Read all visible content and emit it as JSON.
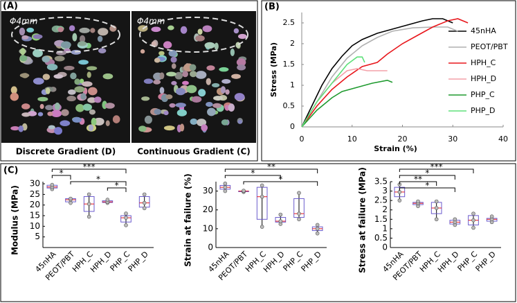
{
  "panel_a": {
    "label": "(A)",
    "scale_label": "Φ4mm",
    "captions": [
      "Discrete Gradient (D)",
      "Continuous Gradient (C)"
    ]
  },
  "chart_data": [
    {
      "type": "line",
      "panel_label": "(B)",
      "xlabel": "Strain (%)",
      "ylabel": "Stress (MPa)",
      "xlim": [
        0,
        40
      ],
      "xticks": [
        0,
        10,
        20,
        30,
        40
      ],
      "ylim": [
        0,
        2.75
      ],
      "yticks": [
        0,
        0.5,
        1,
        1.5,
        2,
        2.5
      ],
      "legend": "right",
      "series": [
        {
          "name": "45nHA",
          "color": "#000000",
          "x": [
            0,
            2,
            4,
            6,
            8,
            10,
            12,
            15,
            18,
            21,
            24,
            26,
            28,
            30
          ],
          "values": [
            0,
            0.5,
            1.0,
            1.4,
            1.7,
            1.95,
            2.1,
            2.25,
            2.35,
            2.45,
            2.55,
            2.6,
            2.6,
            2.5
          ]
        },
        {
          "name": "PEOT/PBT",
          "color": "#b0b0b0",
          "x": [
            0,
            3,
            6,
            9,
            12,
            15,
            18,
            22,
            26,
            29,
            31
          ],
          "values": [
            0,
            0.6,
            1.2,
            1.65,
            1.95,
            2.15,
            2.3,
            2.38,
            2.4,
            2.4,
            2.3
          ]
        },
        {
          "name": "HPH_C",
          "color": "#e8161b",
          "x": [
            0,
            3,
            6,
            9,
            12,
            15,
            17,
            20,
            23,
            26,
            29,
            31,
            33
          ],
          "values": [
            0,
            0.5,
            0.9,
            1.2,
            1.45,
            1.55,
            1.75,
            2.0,
            2.2,
            2.4,
            2.55,
            2.6,
            2.5
          ]
        },
        {
          "name": "HPH_D",
          "color": "#f4a0a8",
          "x": [
            0,
            3,
            6,
            9,
            11,
            13,
            17
          ],
          "values": [
            0,
            0.6,
            1.05,
            1.35,
            1.4,
            1.35,
            1.35
          ]
        },
        {
          "name": "PHP_C",
          "color": "#1e9a2e",
          "x": [
            0,
            3,
            6,
            8,
            11,
            14,
            17,
            18
          ],
          "values": [
            0,
            0.4,
            0.7,
            0.85,
            0.95,
            1.05,
            1.12,
            1.07
          ]
        },
        {
          "name": "PHP_D",
          "color": "#5ee07a",
          "x": [
            0,
            3,
            6,
            9,
            11,
            12,
            12.5
          ],
          "values": [
            0,
            0.6,
            1.05,
            1.5,
            1.68,
            1.68,
            1.55
          ]
        }
      ]
    },
    {
      "type": "box",
      "panel_label": "(C)",
      "ylabel": "Modulus (MPa)",
      "ylim": [
        0,
        31
      ],
      "yticks": [
        5,
        10,
        15,
        20,
        25,
        30
      ],
      "categories": [
        "45nHA",
        "PEOT/PBT",
        "HPH_C",
        "HPH_D",
        "PHP_C",
        "PHP_D"
      ],
      "boxes": [
        {
          "min": 27.5,
          "q1": 28,
          "median": 28.5,
          "q3": 29.3,
          "max": 29.5
        },
        {
          "min": 21,
          "q1": 21.5,
          "median": 22.5,
          "q3": 23,
          "max": 23
        },
        {
          "min": 14.5,
          "q1": 17,
          "median": 20.5,
          "q3": 24,
          "max": 25
        },
        {
          "min": 21,
          "q1": 21.2,
          "median": 21.5,
          "q3": 22,
          "max": 22.5
        },
        {
          "min": 10.5,
          "q1": 12,
          "median": 14,
          "q3": 15,
          "max": 16
        },
        {
          "min": 18.5,
          "q1": 19,
          "median": 21,
          "q3": 24,
          "max": 25
        }
      ],
      "annotations": [
        "*",
        "***",
        "*",
        "*"
      ]
    },
    {
      "type": "box",
      "ylabel": "Strain at failure (%)",
      "ylim": [
        0,
        35
      ],
      "yticks": [
        0,
        10,
        20,
        30
      ],
      "categories": [
        "45nHA",
        "PEOT/PBT",
        "HPH_C",
        "HPH_D",
        "PHP_C",
        "PHP_D"
      ],
      "boxes": [
        {
          "min": 30,
          "q1": 31,
          "median": 32,
          "q3": 33,
          "max": 34
        },
        {
          "min": 29.5,
          "q1": 29.7,
          "median": 30,
          "q3": 30,
          "max": 30.2
        },
        {
          "min": 11,
          "q1": 15,
          "median": 27,
          "q3": 32,
          "max": 33
        },
        {
          "min": 12.5,
          "q1": 13.5,
          "median": 14,
          "q3": 16,
          "max": 17.5
        },
        {
          "min": 15,
          "q1": 16,
          "median": 18,
          "q3": 26,
          "max": 29
        },
        {
          "min": 7.5,
          "q1": 9,
          "median": 10,
          "q3": 11,
          "max": 12
        }
      ],
      "annotations": [
        "*",
        "**",
        "*"
      ]
    },
    {
      "type": "box",
      "ylabel": "Stress at failure (MPa)",
      "ylim": [
        0,
        3.5
      ],
      "yticks": [
        0,
        0.5,
        1,
        1.5,
        2,
        2.5,
        3,
        3.5
      ],
      "categories": [
        "45nHA",
        "PEOT/PBT",
        "HPH_C",
        "HPH_D",
        "PHP_C",
        "PHP_D"
      ],
      "boxes": [
        {
          "min": 2.5,
          "q1": 2.7,
          "median": 2.95,
          "q3": 3.2,
          "max": 3.35
        },
        {
          "min": 2.2,
          "q1": 2.28,
          "median": 2.35,
          "q3": 2.4,
          "max": 2.45
        },
        {
          "min": 1.5,
          "q1": 1.8,
          "median": 2.1,
          "q3": 2.4,
          "max": 2.45
        },
        {
          "min": 1.2,
          "q1": 1.25,
          "median": 1.35,
          "q3": 1.45,
          "max": 1.5
        },
        {
          "min": 1.05,
          "q1": 1.2,
          "median": 1.45,
          "q3": 1.7,
          "max": 1.8
        },
        {
          "min": 1.35,
          "q1": 1.4,
          "median": 1.5,
          "q3": 1.55,
          "max": 1.65
        }
      ],
      "annotations": [
        "**",
        "***",
        "*",
        "*"
      ]
    }
  ]
}
